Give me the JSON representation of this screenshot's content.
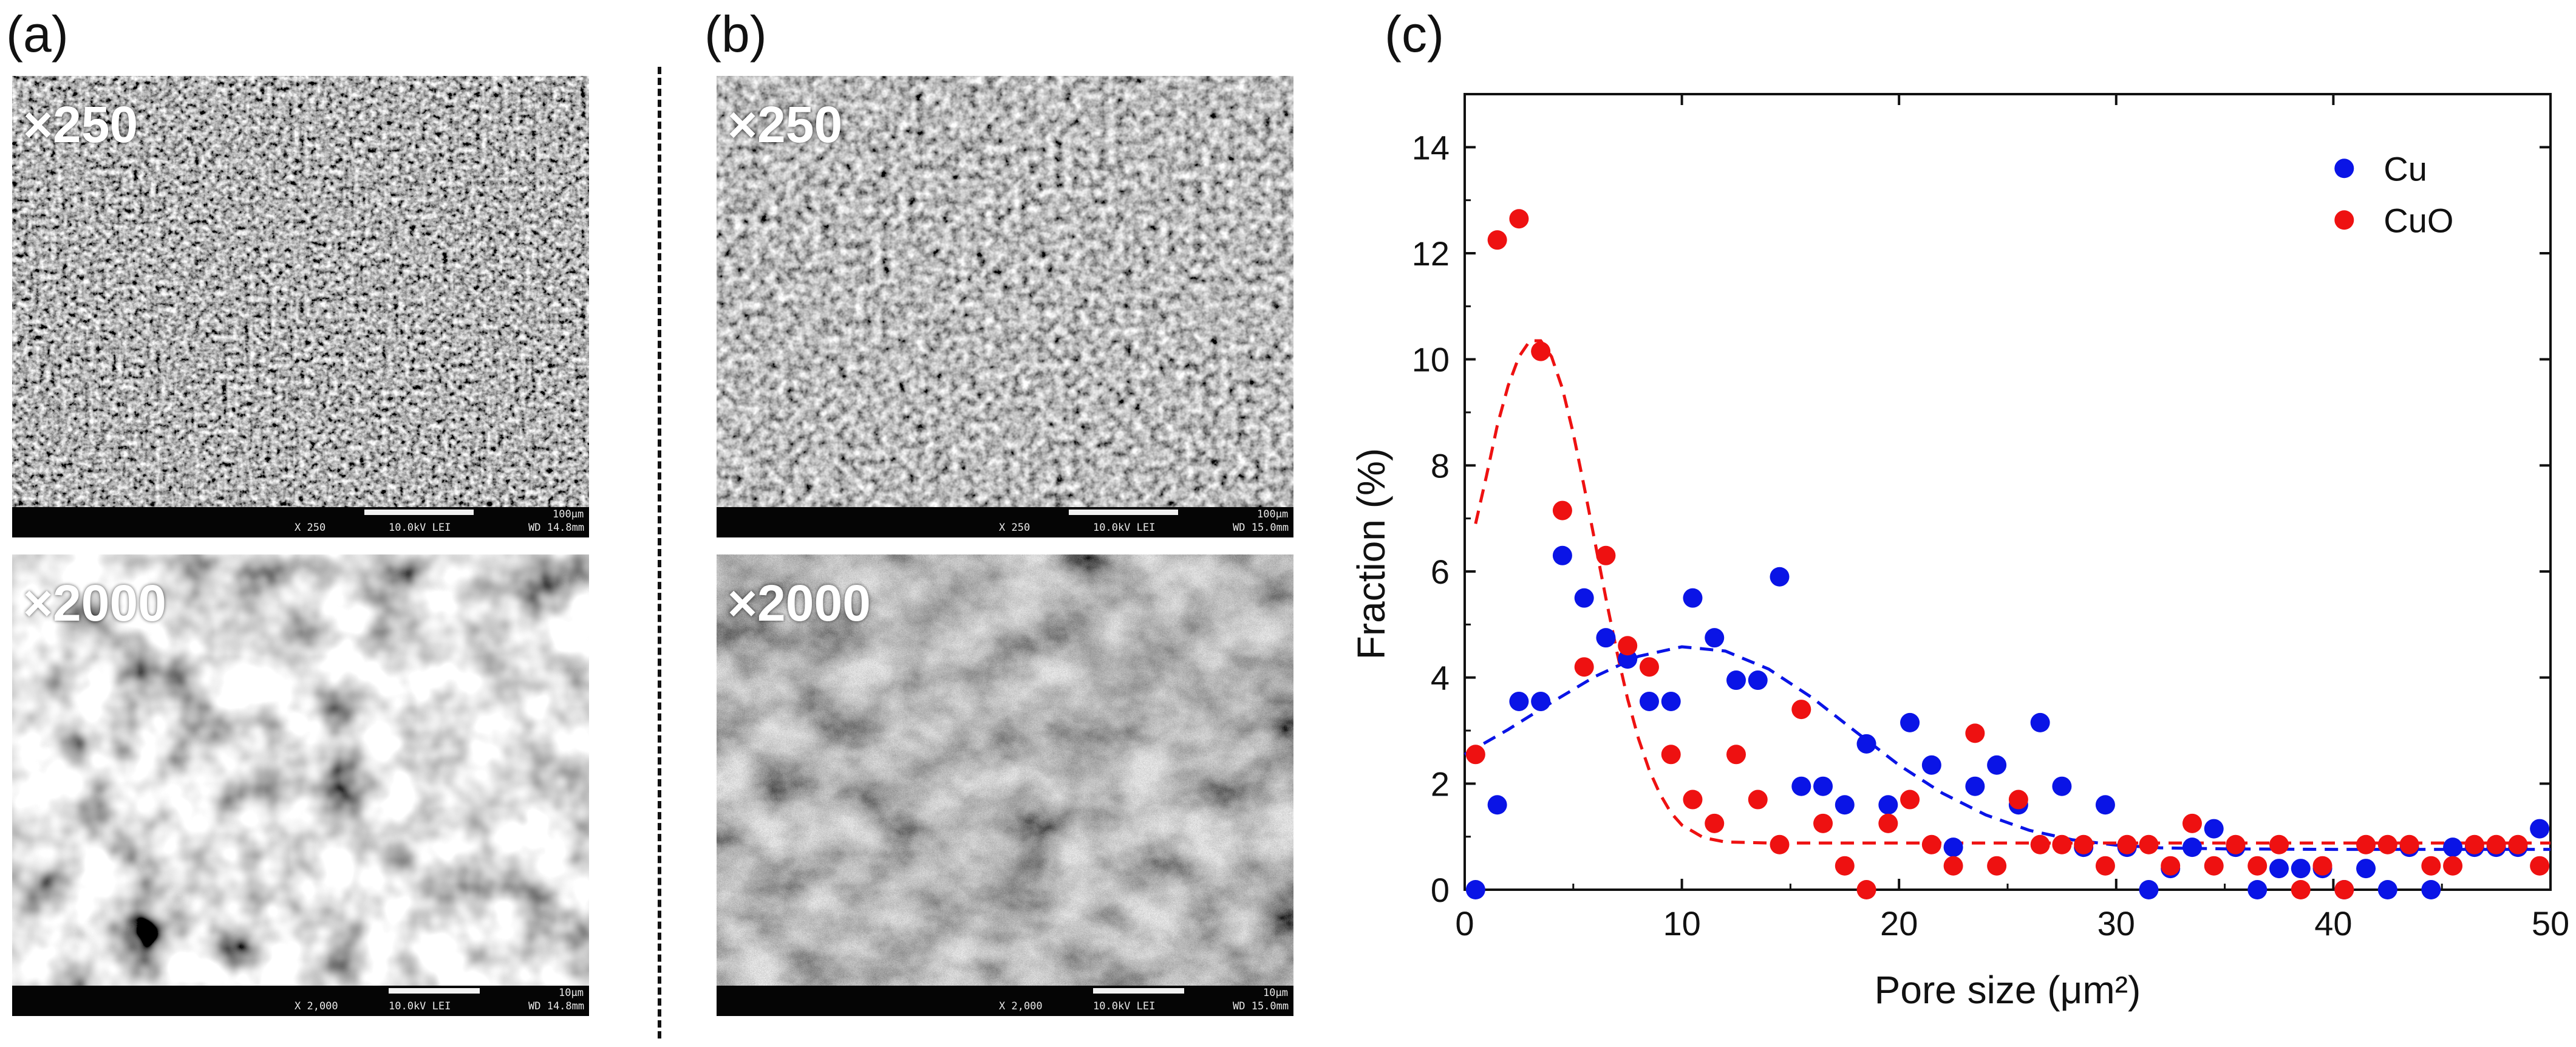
{
  "panels": {
    "a": {
      "label": "(a)",
      "top": {
        "mag": "×250",
        "info": {
          "magnification": "X 250",
          "voltage": "10.0kV LEI",
          "scale": "100μm",
          "wd": "WD 14.8mm"
        }
      },
      "bottom": {
        "mag": "×2000",
        "info": {
          "magnification": "X 2,000",
          "voltage": "10.0kV LEI",
          "scale": "10μm",
          "wd": "WD 14.8mm"
        }
      }
    },
    "b": {
      "label": "(b)",
      "top": {
        "mag": "×250",
        "info": {
          "magnification": "X 250",
          "voltage": "10.0kV LEI",
          "scale": "100μm",
          "wd": "WD 15.0mm"
        }
      },
      "bottom": {
        "mag": "×2000",
        "info": {
          "magnification": "X 2,000",
          "voltage": "10.0kV LEI",
          "scale": "10μm",
          "wd": "WD 15.0mm"
        }
      }
    },
    "c": {
      "label": "(c)"
    }
  },
  "chart_data": {
    "type": "scatter",
    "xlabel": "Pore size (μm²)",
    "ylabel": "Fraction (%)",
    "xlim": [
      0,
      50
    ],
    "ylim": [
      0,
      15
    ],
    "xticks": [
      0,
      10,
      20,
      30,
      40,
      50
    ],
    "yticks": [
      0,
      2,
      4,
      6,
      8,
      10,
      12,
      14
    ],
    "legend_position": "top-right",
    "series": [
      {
        "name": "Cu",
        "color": "#0a14e6",
        "points": [
          [
            0.5,
            0
          ],
          [
            1.5,
            1.6
          ],
          [
            2.5,
            3.55
          ],
          [
            3.5,
            3.55
          ],
          [
            4.5,
            6.3
          ],
          [
            5.5,
            5.5
          ],
          [
            6.5,
            4.75
          ],
          [
            7.5,
            4.35
          ],
          [
            8.5,
            3.55
          ],
          [
            9.5,
            3.55
          ],
          [
            10.5,
            5.5
          ],
          [
            11.5,
            4.75
          ],
          [
            12.5,
            3.95
          ],
          [
            13.5,
            3.95
          ],
          [
            14.5,
            5.9
          ],
          [
            15.5,
            1.95
          ],
          [
            16.5,
            1.95
          ],
          [
            17.5,
            1.6
          ],
          [
            18.5,
            2.75
          ],
          [
            19.5,
            1.6
          ],
          [
            20.5,
            3.15
          ],
          [
            21.5,
            2.35
          ],
          [
            22.5,
            0.8
          ],
          [
            23.5,
            1.95
          ],
          [
            24.5,
            2.35
          ],
          [
            25.5,
            1.6
          ],
          [
            26.5,
            3.15
          ],
          [
            27.5,
            1.95
          ],
          [
            28.5,
            0.8
          ],
          [
            29.5,
            1.6
          ],
          [
            30.5,
            0.8
          ],
          [
            31.5,
            0
          ],
          [
            32.5,
            0.4
          ],
          [
            33.5,
            0.8
          ],
          [
            34.5,
            1.15
          ],
          [
            35.5,
            0.8
          ],
          [
            36.5,
            0
          ],
          [
            37.5,
            0.4
          ],
          [
            38.5,
            0.4
          ],
          [
            39.5,
            0.4
          ],
          [
            40.5,
            0
          ],
          [
            41.5,
            0.4
          ],
          [
            42.5,
            0
          ],
          [
            43.5,
            0.8
          ],
          [
            44.5,
            0
          ],
          [
            45.5,
            0.8
          ],
          [
            46.5,
            0.8
          ],
          [
            47.5,
            0.8
          ],
          [
            48.5,
            0.8
          ],
          [
            49.5,
            1.15
          ]
        ],
        "fit": [
          [
            0,
            2.55
          ],
          [
            2,
            3.02
          ],
          [
            4,
            3.53
          ],
          [
            6,
            4.02
          ],
          [
            8,
            4.4
          ],
          [
            10,
            4.58
          ],
          [
            12,
            4.5
          ],
          [
            14,
            4.16
          ],
          [
            16,
            3.62
          ],
          [
            18,
            2.98
          ],
          [
            20,
            2.35
          ],
          [
            22,
            1.82
          ],
          [
            24,
            1.41
          ],
          [
            26,
            1.12
          ],
          [
            28,
            0.94
          ],
          [
            30,
            0.84
          ],
          [
            32,
            0.79
          ],
          [
            35,
            0.77
          ],
          [
            40,
            0.76
          ],
          [
            45,
            0.76
          ],
          [
            50,
            0.76
          ]
        ]
      },
      {
        "name": "CuO",
        "color": "#ee1111",
        "points": [
          [
            0.5,
            2.55
          ],
          [
            1.5,
            12.25
          ],
          [
            2.5,
            12.65
          ],
          [
            3.5,
            10.15
          ],
          [
            4.5,
            7.15
          ],
          [
            5.5,
            4.2
          ],
          [
            6.5,
            6.3
          ],
          [
            7.5,
            4.6
          ],
          [
            8.5,
            4.2
          ],
          [
            9.5,
            2.55
          ],
          [
            10.5,
            1.7
          ],
          [
            11.5,
            1.25
          ],
          [
            12.5,
            2.55
          ],
          [
            13.5,
            1.7
          ],
          [
            14.5,
            0.85
          ],
          [
            15.5,
            3.4
          ],
          [
            16.5,
            1.25
          ],
          [
            17.5,
            0.45
          ],
          [
            18.5,
            0
          ],
          [
            19.5,
            1.25
          ],
          [
            20.5,
            1.7
          ],
          [
            21.5,
            0.85
          ],
          [
            22.5,
            0.45
          ],
          [
            23.5,
            2.95
          ],
          [
            24.5,
            0.45
          ],
          [
            25.5,
            1.7
          ],
          [
            26.5,
            0.85
          ],
          [
            27.5,
            0.85
          ],
          [
            28.5,
            0.85
          ],
          [
            29.5,
            0.45
          ],
          [
            30.5,
            0.85
          ],
          [
            31.5,
            0.85
          ],
          [
            32.5,
            0.45
          ],
          [
            33.5,
            1.25
          ],
          [
            34.5,
            0.45
          ],
          [
            35.5,
            0.85
          ],
          [
            36.5,
            0.45
          ],
          [
            37.5,
            0.85
          ],
          [
            38.5,
            0
          ],
          [
            39.5,
            0.45
          ],
          [
            40.5,
            0
          ],
          [
            41.5,
            0.85
          ],
          [
            42.5,
            0.85
          ],
          [
            43.5,
            0.85
          ],
          [
            44.5,
            0.45
          ],
          [
            45.5,
            0.45
          ],
          [
            46.5,
            0.85
          ],
          [
            47.5,
            0.85
          ],
          [
            48.5,
            0.85
          ],
          [
            49.5,
            0.45
          ]
        ],
        "fit": [
          [
            0.5,
            6.9
          ],
          [
            1,
            7.8
          ],
          [
            1.5,
            8.75
          ],
          [
            2,
            9.5
          ],
          [
            2.5,
            10.05
          ],
          [
            3,
            10.35
          ],
          [
            3.5,
            10.35
          ],
          [
            4,
            10.05
          ],
          [
            4.5,
            9.45
          ],
          [
            5,
            8.6
          ],
          [
            5.5,
            7.6
          ],
          [
            6,
            6.55
          ],
          [
            6.5,
            5.5
          ],
          [
            7,
            4.5
          ],
          [
            7.5,
            3.6
          ],
          [
            8,
            2.85
          ],
          [
            8.5,
            2.25
          ],
          [
            9,
            1.8
          ],
          [
            9.5,
            1.45
          ],
          [
            10,
            1.22
          ],
          [
            11,
            0.98
          ],
          [
            12,
            0.9
          ],
          [
            14,
            0.88
          ],
          [
            20,
            0.88
          ],
          [
            30,
            0.88
          ],
          [
            40,
            0.88
          ],
          [
            50,
            0.88
          ]
        ]
      }
    ]
  }
}
